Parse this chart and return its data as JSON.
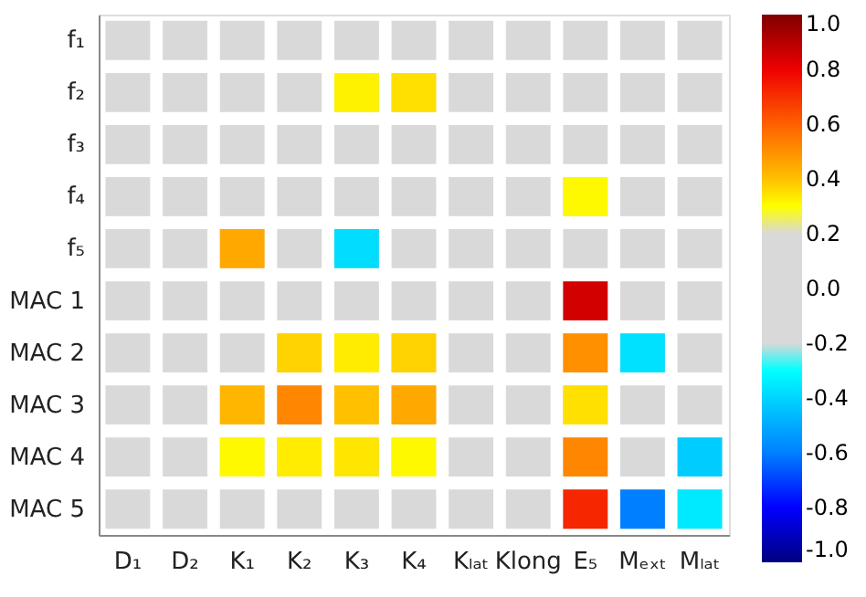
{
  "chart_data": {
    "type": "heatmap",
    "categories": [
      "D₁",
      "D₂",
      "K₁",
      "K₂",
      "K₃",
      "K₄",
      "Kₗₐₜ",
      "Klong",
      "E₅",
      "Mₑₓₜ",
      "Mₗₐₜ"
    ],
    "y_categories": [
      "f₁",
      "f₂",
      "f₃",
      "f₄",
      "f₅",
      "MAC 1",
      "MAC 2",
      "MAC 3",
      "MAC 4",
      "MAC 5"
    ],
    "cells": [
      [
        null,
        null,
        null,
        null,
        null,
        null,
        null,
        null,
        null,
        null,
        null
      ],
      [
        null,
        null,
        null,
        null,
        0.32,
        0.35,
        null,
        null,
        null,
        null,
        null
      ],
      [
        null,
        null,
        null,
        null,
        null,
        null,
        null,
        null,
        null,
        null,
        null
      ],
      [
        null,
        null,
        null,
        null,
        null,
        null,
        null,
        null,
        0.31,
        null,
        null
      ],
      [
        null,
        null,
        0.45,
        null,
        -0.38,
        null,
        null,
        null,
        null,
        null,
        null
      ],
      [
        null,
        null,
        null,
        null,
        null,
        null,
        null,
        null,
        0.85,
        null,
        null
      ],
      [
        null,
        null,
        null,
        0.37,
        0.33,
        0.37,
        null,
        null,
        0.5,
        -0.37,
        null
      ],
      [
        null,
        null,
        0.42,
        0.52,
        0.4,
        0.45,
        null,
        null,
        0.35,
        null,
        null
      ],
      [
        null,
        null,
        0.31,
        0.33,
        0.34,
        0.31,
        null,
        null,
        0.52,
        null,
        -0.42
      ],
      [
        null,
        null,
        null,
        null,
        null,
        null,
        null,
        null,
        0.72,
        -0.6,
        -0.35
      ]
    ],
    "clim": [
      -1,
      1
    ],
    "cticks": [
      {
        "value": 1,
        "label": "1.0"
      },
      {
        "value": 0.8,
        "label": "0.8"
      },
      {
        "value": 0.6,
        "label": "0.6"
      },
      {
        "value": 0.4,
        "label": "0.4"
      },
      {
        "value": 0.2,
        "label": "0.2"
      },
      {
        "value": 0,
        "label": "0.0"
      },
      {
        "value": -0.2,
        "label": "-0.2"
      },
      {
        "value": -0.4,
        "label": "-0.4"
      },
      {
        "value": -0.6,
        "label": "-0.6"
      },
      {
        "value": -0.8,
        "label": "-0.8"
      },
      {
        "value": -1,
        "label": "-1.0"
      }
    ]
  }
}
